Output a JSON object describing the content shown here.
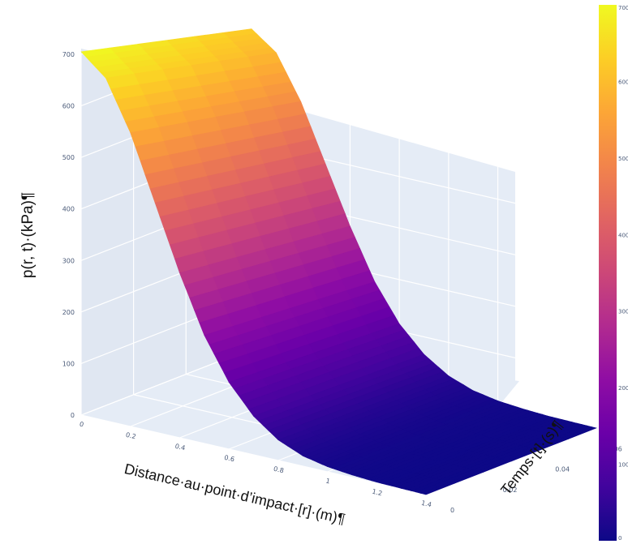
{
  "chart_data": {
    "type": "surface",
    "title": "",
    "zlabel": "p(r, t)·(kPa)¶",
    "xlabel": "Distance·au·point·d’impact·[r]·(m)¶",
    "ylabel": "Temps·[t]·(s)¶",
    "x_ticks": [
      "0",
      "0.2",
      "0.4",
      "0.6",
      "0.8",
      "1",
      "1.2",
      "1.4"
    ],
    "y_ticks": [
      "0",
      "0.02",
      "0.04",
      "0.06"
    ],
    "z_ticks": [
      "0",
      "100",
      "200",
      "300",
      "400",
      "500",
      "600",
      "700"
    ],
    "colorbar_ticks": [
      "0",
      "100",
      "200",
      "300",
      "400",
      "500",
      "600",
      "700"
    ],
    "xlim": [
      0,
      1.4
    ],
    "ylim": [
      0,
      0.065
    ],
    "zlim": [
      0,
      700
    ],
    "pressure_profile_r": [
      0,
      0.1,
      0.2,
      0.3,
      0.4,
      0.5,
      0.6,
      0.7,
      0.8,
      0.9,
      1.0,
      1.1,
      1.2,
      1.3,
      1.4
    ],
    "pressure_profile_p": [
      705,
      665,
      570,
      445,
      320,
      210,
      130,
      75,
      40,
      20,
      10,
      5,
      2,
      1,
      0
    ],
    "colorscale": [
      "#0d0887",
      "#41049d",
      "#6a00a8",
      "#8f0da4",
      "#b12a90",
      "#cc4778",
      "#e16462",
      "#f2844b",
      "#fca636",
      "#fcce25",
      "#f0f921"
    ],
    "scene_background": "#e5ecf6",
    "grid": true
  }
}
